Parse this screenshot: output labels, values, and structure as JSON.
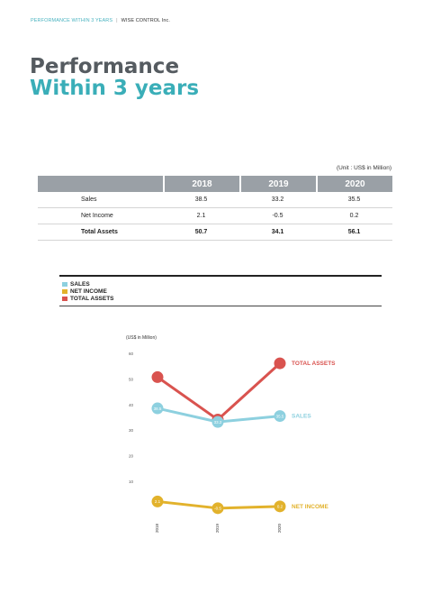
{
  "header": {
    "section": "PERFORMANCE WITHIN 3 YEARS",
    "separator": "|",
    "company": "WISE CONTROL Inc."
  },
  "title": {
    "line1": "Performance",
    "line2": "Within 3 years"
  },
  "table": {
    "unit": "(Unit : US$ in Million)",
    "years": [
      "2018",
      "2019",
      "2020"
    ],
    "rows": [
      {
        "label": "Sales",
        "values": [
          "38.5",
          "33.2",
          "35.5"
        ],
        "bold": false
      },
      {
        "label": "Net Income",
        "values": [
          "2.1",
          "-0.5",
          "0.2"
        ],
        "bold": false
      },
      {
        "label": "Total Assets",
        "values": [
          "50.7",
          "34.1",
          "56.1"
        ],
        "bold": true
      }
    ]
  },
  "legend": [
    {
      "label": "SALES",
      "color": "#8dd0df"
    },
    {
      "label": "NET INCOME",
      "color": "#e2b22c"
    },
    {
      "label": "TOTAL ASSETS",
      "color": "#d9534f"
    }
  ],
  "chart_data": {
    "type": "line",
    "ylabel": "(US$ in Million)",
    "yticks": [
      "60",
      "50",
      "40",
      "30",
      "20",
      "10"
    ],
    "ylim": [
      0,
      60
    ],
    "x": [
      "2018",
      "2019",
      "2020"
    ],
    "series": [
      {
        "name": "TOTAL ASSETS",
        "color": "#d9534f",
        "values": [
          50.7,
          34.1,
          56.1
        ],
        "labels": [
          "",
          "",
          ""
        ]
      },
      {
        "name": "SALES",
        "color": "#8dd0df",
        "values": [
          38.5,
          33.2,
          35.5
        ],
        "labels": [
          "38.5",
          "33.2",
          "35.5"
        ]
      },
      {
        "name": "NET INCOME",
        "color": "#e2b22c",
        "values": [
          2.1,
          -0.5,
          0.2
        ],
        "labels": [
          "2.1",
          "-0.5",
          "0.2"
        ]
      }
    ]
  }
}
